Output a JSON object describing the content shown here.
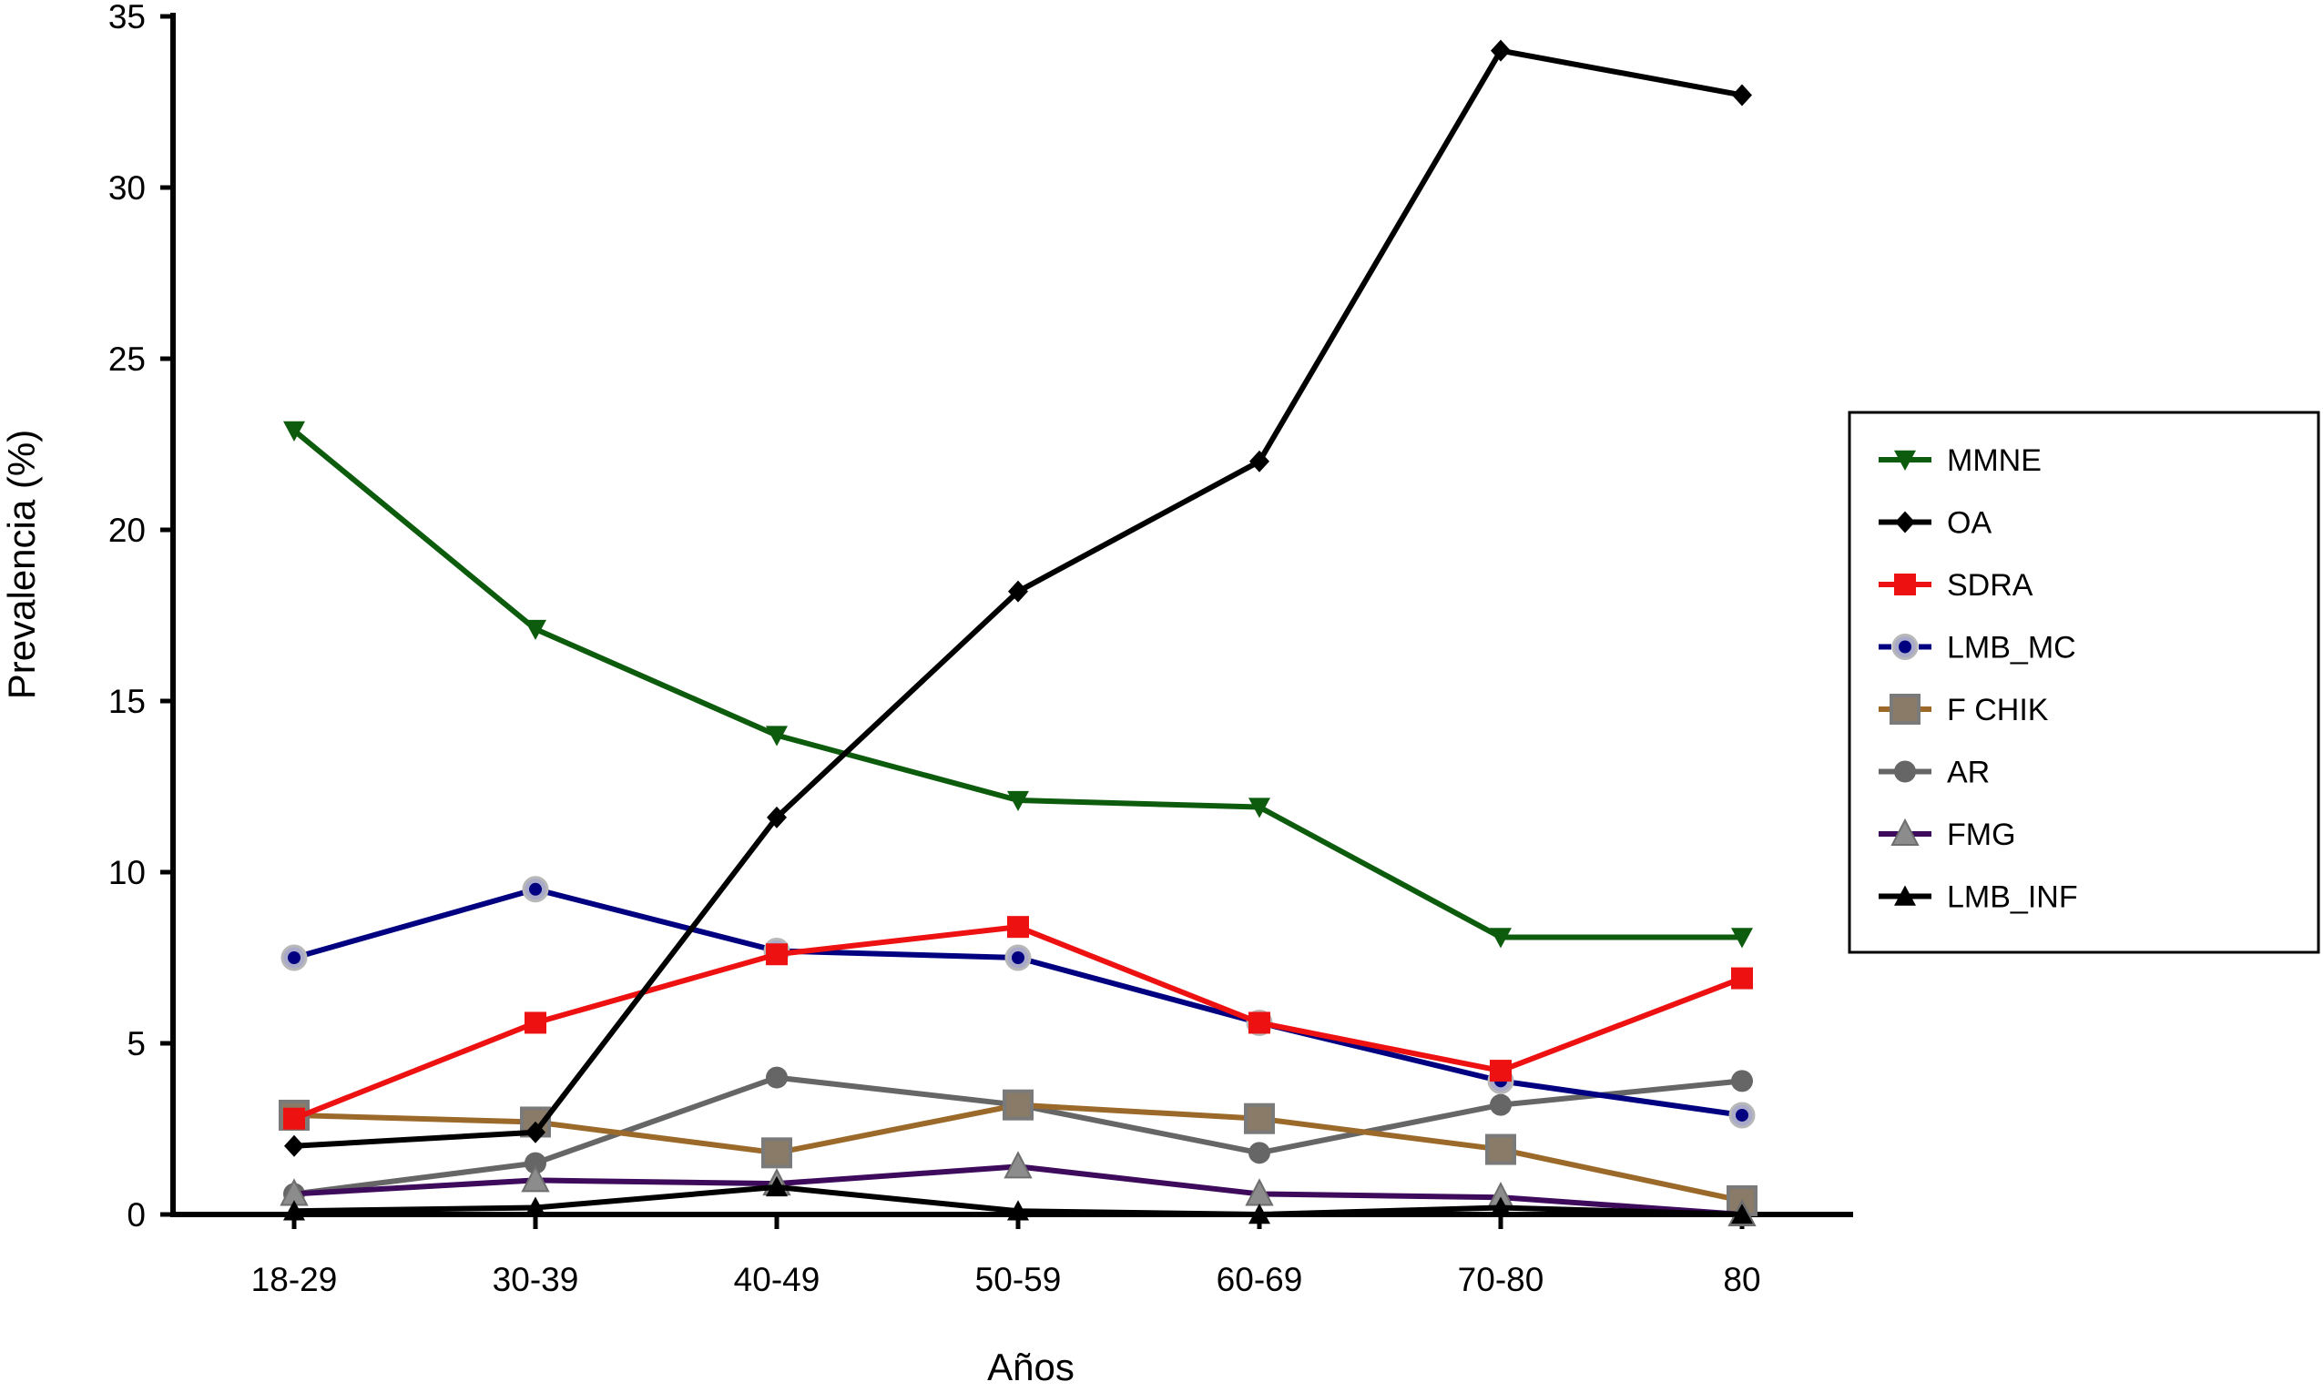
{
  "chart_data": {
    "type": "line",
    "categories": [
      "18-29",
      "30-39",
      "40-49",
      "50-59",
      "60-69",
      "70-80",
      "80"
    ],
    "xlabel": "Años",
    "ylabel": "Prevalencia (%)",
    "ylim": [
      0,
      35
    ],
    "yticks": [
      0,
      5,
      10,
      15,
      20,
      25,
      30,
      35
    ],
    "grid": false,
    "legend_position": "right",
    "series": [
      {
        "name": "MMNE",
        "color": "#0d5c0d",
        "marker": "triangle-down",
        "values": [
          22.9,
          17.1,
          14.0,
          12.1,
          11.9,
          8.1,
          8.1
        ]
      },
      {
        "name": "OA",
        "color": "#000000",
        "marker": "diamond",
        "values": [
          2.0,
          2.4,
          11.6,
          18.2,
          22.0,
          34.0,
          32.7
        ]
      },
      {
        "name": "SDRA",
        "color": "#ee1111",
        "marker": "square",
        "values": [
          2.8,
          5.6,
          7.6,
          8.4,
          5.6,
          4.2,
          6.9
        ]
      },
      {
        "name": "LMB_MC",
        "color": "#000080",
        "marker": "circle-halo",
        "values": [
          7.5,
          9.5,
          7.7,
          7.5,
          5.6,
          3.9,
          2.9
        ]
      },
      {
        "name": "F CHIK",
        "color": "#9b6a2a",
        "marker": "square-gray",
        "values": [
          2.9,
          2.7,
          1.8,
          3.2,
          2.8,
          1.9,
          0.4
        ]
      },
      {
        "name": "AR",
        "color": "#666666",
        "marker": "circle",
        "values": [
          0.6,
          1.5,
          4.0,
          3.2,
          1.8,
          3.2,
          3.9
        ]
      },
      {
        "name": "FMG",
        "color": "#3d0a5c",
        "marker": "triangle-up-gray",
        "values": [
          0.6,
          1.0,
          0.9,
          1.4,
          0.6,
          0.5,
          0.0
        ]
      },
      {
        "name": "LMB_INF",
        "color": "#000000",
        "marker": "triangle-up",
        "values": [
          0.1,
          0.2,
          0.8,
          0.1,
          0.0,
          0.2,
          0.0
        ]
      }
    ]
  }
}
